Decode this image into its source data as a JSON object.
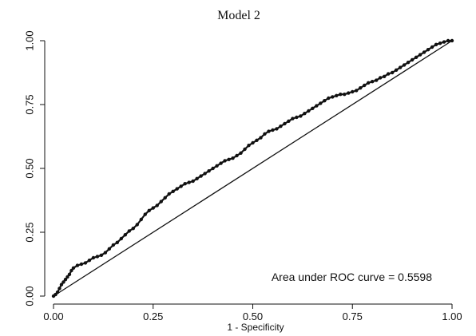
{
  "chart_data": {
    "type": "line",
    "title": "Model 2",
    "xlabel": "1 - Specificity",
    "ylabel": "",
    "xlim": [
      0,
      1
    ],
    "ylim": [
      0,
      1
    ],
    "x_ticks": [
      "0.00",
      "0.25",
      "0.50",
      "0.75",
      "1.00"
    ],
    "y_ticks": [
      "0.00",
      "0.25",
      "0.50",
      "0.75",
      "1.00"
    ],
    "grid": false,
    "legend": "none",
    "annotation": "Area under ROC curve = 0.5598",
    "series": [
      {
        "marker": "circle",
        "color": "#111111",
        "points": [
          [
            0.0,
            0.0
          ],
          [
            0.005,
            0.006
          ],
          [
            0.01,
            0.015
          ],
          [
            0.015,
            0.03
          ],
          [
            0.02,
            0.045
          ],
          [
            0.025,
            0.055
          ],
          [
            0.03,
            0.065
          ],
          [
            0.035,
            0.075
          ],
          [
            0.04,
            0.085
          ],
          [
            0.045,
            0.1
          ],
          [
            0.05,
            0.11
          ],
          [
            0.06,
            0.12
          ],
          [
            0.07,
            0.125
          ],
          [
            0.08,
            0.13
          ],
          [
            0.09,
            0.14
          ],
          [
            0.1,
            0.15
          ],
          [
            0.11,
            0.155
          ],
          [
            0.12,
            0.16
          ],
          [
            0.13,
            0.17
          ],
          [
            0.14,
            0.185
          ],
          [
            0.15,
            0.2
          ],
          [
            0.16,
            0.21
          ],
          [
            0.17,
            0.225
          ],
          [
            0.18,
            0.24
          ],
          [
            0.19,
            0.255
          ],
          [
            0.2,
            0.265
          ],
          [
            0.21,
            0.28
          ],
          [
            0.22,
            0.3
          ],
          [
            0.23,
            0.32
          ],
          [
            0.24,
            0.335
          ],
          [
            0.25,
            0.345
          ],
          [
            0.26,
            0.355
          ],
          [
            0.27,
            0.37
          ],
          [
            0.28,
            0.385
          ],
          [
            0.29,
            0.4
          ],
          [
            0.3,
            0.41
          ],
          [
            0.31,
            0.42
          ],
          [
            0.32,
            0.43
          ],
          [
            0.33,
            0.44
          ],
          [
            0.34,
            0.445
          ],
          [
            0.35,
            0.45
          ],
          [
            0.36,
            0.46
          ],
          [
            0.37,
            0.47
          ],
          [
            0.38,
            0.48
          ],
          [
            0.39,
            0.49
          ],
          [
            0.4,
            0.5
          ],
          [
            0.41,
            0.51
          ],
          [
            0.42,
            0.52
          ],
          [
            0.43,
            0.53
          ],
          [
            0.44,
            0.535
          ],
          [
            0.45,
            0.54
          ],
          [
            0.46,
            0.55
          ],
          [
            0.47,
            0.56
          ],
          [
            0.48,
            0.575
          ],
          [
            0.49,
            0.59
          ],
          [
            0.5,
            0.6
          ],
          [
            0.51,
            0.61
          ],
          [
            0.52,
            0.62
          ],
          [
            0.53,
            0.635
          ],
          [
            0.54,
            0.645
          ],
          [
            0.55,
            0.65
          ],
          [
            0.56,
            0.655
          ],
          [
            0.57,
            0.665
          ],
          [
            0.58,
            0.675
          ],
          [
            0.59,
            0.685
          ],
          [
            0.6,
            0.695
          ],
          [
            0.61,
            0.7
          ],
          [
            0.62,
            0.705
          ],
          [
            0.63,
            0.715
          ],
          [
            0.64,
            0.725
          ],
          [
            0.65,
            0.735
          ],
          [
            0.66,
            0.745
          ],
          [
            0.67,
            0.755
          ],
          [
            0.68,
            0.765
          ],
          [
            0.69,
            0.775
          ],
          [
            0.7,
            0.78
          ],
          [
            0.71,
            0.785
          ],
          [
            0.72,
            0.79
          ],
          [
            0.73,
            0.79
          ],
          [
            0.74,
            0.795
          ],
          [
            0.75,
            0.8
          ],
          [
            0.76,
            0.805
          ],
          [
            0.77,
            0.815
          ],
          [
            0.78,
            0.825
          ],
          [
            0.79,
            0.835
          ],
          [
            0.8,
            0.84
          ],
          [
            0.81,
            0.845
          ],
          [
            0.82,
            0.855
          ],
          [
            0.83,
            0.86
          ],
          [
            0.84,
            0.87
          ],
          [
            0.85,
            0.875
          ],
          [
            0.86,
            0.885
          ],
          [
            0.87,
            0.895
          ],
          [
            0.88,
            0.905
          ],
          [
            0.89,
            0.915
          ],
          [
            0.9,
            0.925
          ],
          [
            0.91,
            0.935
          ],
          [
            0.92,
            0.945
          ],
          [
            0.93,
            0.955
          ],
          [
            0.94,
            0.965
          ],
          [
            0.95,
            0.975
          ],
          [
            0.96,
            0.985
          ],
          [
            0.97,
            0.99
          ],
          [
            0.98,
            0.995
          ],
          [
            0.99,
            1.0
          ],
          [
            1.0,
            1.0
          ]
        ]
      },
      {
        "type": "reference-line",
        "color": "#111111",
        "points": [
          [
            0,
            0
          ],
          [
            1,
            1
          ]
        ]
      }
    ]
  }
}
